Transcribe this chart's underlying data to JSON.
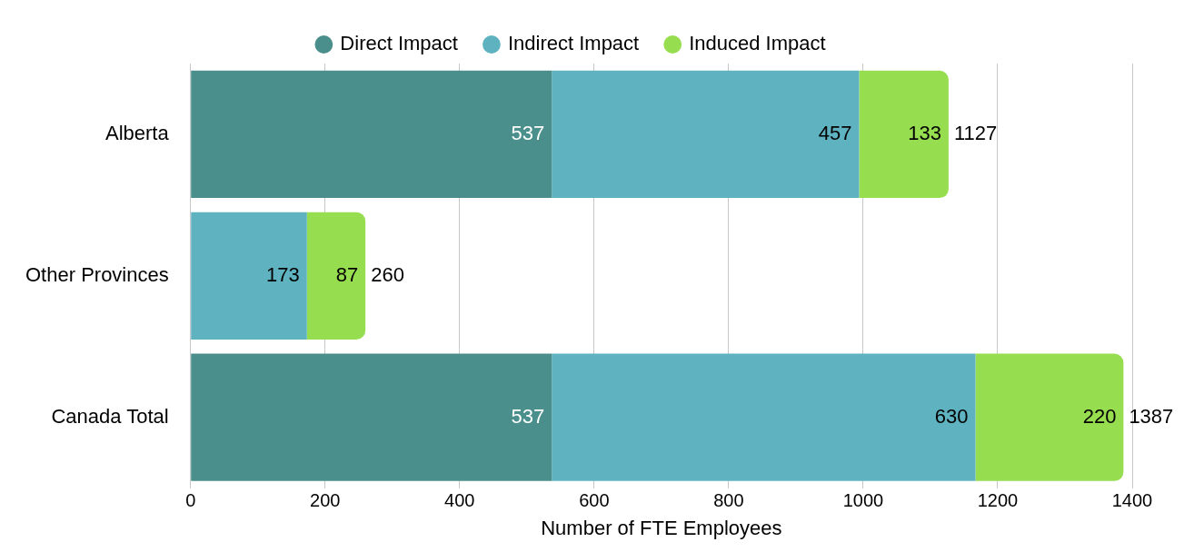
{
  "chart_data": {
    "type": "bar",
    "orientation": "horizontal",
    "stacked": true,
    "xlabel": "Number of FTE Employees",
    "categories": [
      "Alberta",
      "Other Provinces",
      "Canada Total"
    ],
    "series": [
      {
        "name": "Direct Impact",
        "color": "#4a8f8b",
        "values": [
          537,
          null,
          537
        ]
      },
      {
        "name": "Indirect Impact",
        "color": "#5fb2c0",
        "values": [
          457,
          173,
          630
        ]
      },
      {
        "name": "Induced Impact",
        "color": "#97dd50",
        "values": [
          133,
          87,
          220
        ]
      }
    ],
    "totals": [
      "1127",
      "260",
      "1387"
    ],
    "data_labels": true,
    "xlim": [
      0,
      1400
    ],
    "xticks": [
      0,
      200,
      400,
      600,
      800,
      1000,
      1200,
      1400
    ],
    "grid": "x",
    "legend": "top"
  }
}
